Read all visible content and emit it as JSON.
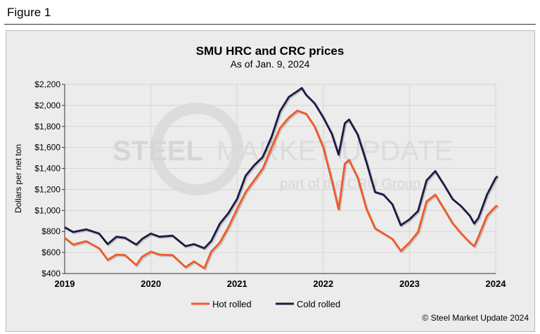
{
  "figure_label": "Figure 1",
  "watermark": {
    "line1a": "STEEL",
    "line1b": "MARKET UPDATE",
    "line2": "part of the CRU Group"
  },
  "copyright": "© Steel Market Update 2024",
  "colors": {
    "hot_rolled": "#f05a28",
    "cold_rolled": "#1c1a45",
    "background": "#ececec",
    "grid": "#d6d6d6"
  },
  "chart_data": {
    "type": "line",
    "title": "SMU HRC and CRC prices",
    "subtitle": "As of Jan. 9, 2024",
    "ylabel": "Dollars per net ton",
    "xlabel": "",
    "xlim": [
      "2019-01-01",
      "2024-01-01"
    ],
    "ylim": [
      400,
      2200
    ],
    "xticks": [
      "2019",
      "2020",
      "2021",
      "2022",
      "2023",
      "2024"
    ],
    "yticks": [
      "$400",
      "$600",
      "$800",
      "$1,000",
      "$1,200",
      "$1,400",
      "$1,600",
      "$1,800",
      "$2,000",
      "$2,200"
    ],
    "grid": true,
    "legend": "bottom",
    "series": [
      {
        "name": "Hot rolled",
        "color": "#f05a28",
        "points": [
          [
            "2019-01-01",
            740
          ],
          [
            "2019-02-06",
            675
          ],
          [
            "2019-04-02",
            708
          ],
          [
            "2019-05-27",
            640
          ],
          [
            "2019-07-02",
            530
          ],
          [
            "2019-08-08",
            580
          ],
          [
            "2019-09-13",
            575
          ],
          [
            "2019-10-31",
            480
          ],
          [
            "2019-11-25",
            560
          ],
          [
            "2020-01-01",
            608
          ],
          [
            "2020-02-06",
            580
          ],
          [
            "2020-04-02",
            575
          ],
          [
            "2020-05-27",
            460
          ],
          [
            "2020-07-02",
            515
          ],
          [
            "2020-08-15",
            450
          ],
          [
            "2020-09-13",
            608
          ],
          [
            "2020-10-20",
            695
          ],
          [
            "2020-11-25",
            840
          ],
          [
            "2021-01-01",
            1015
          ],
          [
            "2021-02-06",
            1175
          ],
          [
            "2021-03-14",
            1285
          ],
          [
            "2021-04-20",
            1400
          ],
          [
            "2021-05-27",
            1600
          ],
          [
            "2021-07-02",
            1785
          ],
          [
            "2021-08-08",
            1885
          ],
          [
            "2021-09-13",
            1950
          ],
          [
            "2021-10-20",
            1920
          ],
          [
            "2021-11-25",
            1800
          ],
          [
            "2022-01-01",
            1600
          ],
          [
            "2022-02-06",
            1285
          ],
          [
            "2022-03-07",
            1010
          ],
          [
            "2022-04-02",
            1445
          ],
          [
            "2022-04-20",
            1480
          ],
          [
            "2022-05-27",
            1310
          ],
          [
            "2022-07-02",
            1020
          ],
          [
            "2022-08-08",
            830
          ],
          [
            "2022-09-13",
            780
          ],
          [
            "2022-10-20",
            730
          ],
          [
            "2022-11-25",
            615
          ],
          [
            "2023-01-01",
            695
          ],
          [
            "2023-02-06",
            795
          ],
          [
            "2023-03-14",
            1085
          ],
          [
            "2023-04-20",
            1150
          ],
          [
            "2023-05-27",
            1015
          ],
          [
            "2023-07-02",
            880
          ],
          [
            "2023-08-08",
            780
          ],
          [
            "2023-09-13",
            695
          ],
          [
            "2023-10-02",
            660
          ],
          [
            "2023-10-20",
            750
          ],
          [
            "2023-11-25",
            950
          ],
          [
            "2024-01-01",
            1040
          ],
          [
            "2024-01-09",
            1045
          ]
        ]
      },
      {
        "name": "Cold rolled",
        "color": "#1c1a45",
        "points": [
          [
            "2019-01-01",
            840
          ],
          [
            "2019-02-06",
            795
          ],
          [
            "2019-04-02",
            820
          ],
          [
            "2019-05-27",
            780
          ],
          [
            "2019-07-02",
            680
          ],
          [
            "2019-08-08",
            750
          ],
          [
            "2019-09-13",
            740
          ],
          [
            "2019-10-31",
            675
          ],
          [
            "2019-11-25",
            730
          ],
          [
            "2020-01-01",
            780
          ],
          [
            "2020-02-06",
            750
          ],
          [
            "2020-04-02",
            760
          ],
          [
            "2020-05-27",
            660
          ],
          [
            "2020-07-02",
            680
          ],
          [
            "2020-08-15",
            640
          ],
          [
            "2020-09-13",
            710
          ],
          [
            "2020-10-20",
            875
          ],
          [
            "2020-11-25",
            975
          ],
          [
            "2021-01-01",
            1110
          ],
          [
            "2021-02-06",
            1330
          ],
          [
            "2021-03-14",
            1430
          ],
          [
            "2021-04-20",
            1510
          ],
          [
            "2021-05-27",
            1700
          ],
          [
            "2021-07-02",
            1945
          ],
          [
            "2021-08-08",
            2080
          ],
          [
            "2021-09-13",
            2135
          ],
          [
            "2021-10-02",
            2165
          ],
          [
            "2021-10-20",
            2100
          ],
          [
            "2021-11-25",
            2020
          ],
          [
            "2022-01-01",
            1885
          ],
          [
            "2022-02-06",
            1730
          ],
          [
            "2022-03-07",
            1530
          ],
          [
            "2022-04-02",
            1830
          ],
          [
            "2022-04-20",
            1865
          ],
          [
            "2022-05-27",
            1720
          ],
          [
            "2022-07-02",
            1465
          ],
          [
            "2022-08-08",
            1175
          ],
          [
            "2022-09-13",
            1150
          ],
          [
            "2022-10-20",
            1060
          ],
          [
            "2022-11-25",
            860
          ],
          [
            "2023-01-01",
            915
          ],
          [
            "2023-02-06",
            995
          ],
          [
            "2023-03-14",
            1285
          ],
          [
            "2023-04-20",
            1375
          ],
          [
            "2023-05-27",
            1245
          ],
          [
            "2023-07-02",
            1110
          ],
          [
            "2023-08-08",
            1040
          ],
          [
            "2023-09-13",
            950
          ],
          [
            "2023-10-02",
            875
          ],
          [
            "2023-10-20",
            930
          ],
          [
            "2023-11-25",
            1150
          ],
          [
            "2024-01-01",
            1310
          ],
          [
            "2024-01-09",
            1325
          ]
        ]
      }
    ]
  }
}
